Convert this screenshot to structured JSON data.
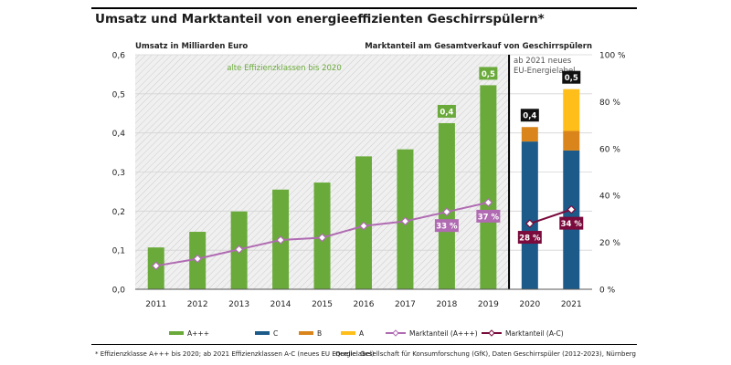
{
  "title": "Umsatz und Marktanteil von energieeffizienten Geschirrspülern*",
  "left_axis_title": "Umsatz in Milliarden Euro",
  "right_axis_title": "Marktanteil am Gesamtverkauf von Geschirrspülern",
  "period1_label": "alte Effizienzklassen bis 2020",
  "period2_label_line1": "ab 2021 neues",
  "period2_label_line2": "EU-Energielabel",
  "footnote": "* Effizienzklasse A+++ bis 2020; ab 2021 Effizienzklassen A-C (neues EU Energielabel)",
  "source": "Quelle: Gesellschaft für Konsumforschung (GfK), Daten Geschirrspüler (2012-2023), Nürnberg",
  "colors": {
    "a_plus": "#6aaa3a",
    "c": "#1c5a8a",
    "b": "#d9851b",
    "a": "#ffbe1a",
    "share_old": "#b06bb2",
    "share_new": "#7a0b3c",
    "hatch_bg": "#f0f0f0",
    "hatch_line": "#cccccc"
  },
  "chart_data": {
    "type": "bar",
    "title": "Umsatz und Marktanteil von energieeffizienten Geschirrspülern*",
    "categories": [
      "2011",
      "2012",
      "2013",
      "2014",
      "2015",
      "2016",
      "2017",
      "2018",
      "2019",
      "2020",
      "2021"
    ],
    "ylabel": "Umsatz in Milliarden Euro",
    "ylim": [
      0,
      0.6
    ],
    "y_ticks": [
      "0,0",
      "0,1",
      "0,2",
      "0,3",
      "0,4",
      "0,5",
      "0,6"
    ],
    "y2label": "Marktanteil am Gesamtverkauf von Geschirrspülern",
    "y2lim": [
      0,
      100
    ],
    "y2_ticks": [
      "0 %",
      "20 %",
      "40 %",
      "60 %",
      "80 %",
      "100 %"
    ],
    "series": [
      {
        "name": "A+++",
        "kind": "bar",
        "values": [
          0.107,
          0.147,
          0.199,
          0.255,
          0.273,
          0.34,
          0.358,
          0.425,
          0.522,
          null,
          null
        ]
      },
      {
        "name": "C",
        "kind": "stacked-bar",
        "values": [
          null,
          null,
          null,
          null,
          null,
          null,
          null,
          null,
          null,
          0.378,
          0.355
        ]
      },
      {
        "name": "B",
        "kind": "stacked-bar",
        "values": [
          null,
          null,
          null,
          null,
          null,
          null,
          null,
          null,
          null,
          0.037,
          0.05
        ]
      },
      {
        "name": "A",
        "kind": "stacked-bar",
        "values": [
          null,
          null,
          null,
          null,
          null,
          null,
          null,
          null,
          null,
          0.0,
          0.107
        ]
      },
      {
        "name": "Marktanteil (A+++)",
        "kind": "line",
        "axis": "right",
        "values": [
          10,
          13,
          17,
          21,
          22,
          27,
          29,
          33,
          37,
          null,
          null
        ]
      },
      {
        "name": "Marktanteil (A-C)",
        "kind": "line",
        "axis": "right",
        "values": [
          null,
          null,
          null,
          null,
          null,
          null,
          null,
          null,
          null,
          28,
          34
        ]
      }
    ],
    "bar_total_labels": [
      {
        "category": "2018",
        "label": "0,4"
      },
      {
        "category": "2019",
        "label": "0,5"
      },
      {
        "category": "2020",
        "label": "0,4"
      },
      {
        "category": "2021",
        "label": "0,5"
      }
    ],
    "share_labels": [
      {
        "category": "2018",
        "label": "33 %"
      },
      {
        "category": "2019",
        "label": "37 %"
      },
      {
        "category": "2020",
        "label": "28 %"
      },
      {
        "category": "2021",
        "label": "34 %"
      }
    ],
    "legend": [
      "A+++",
      "C",
      "B",
      "A",
      "Marktanteil (A+++)",
      "Marktanteil (A-C)"
    ],
    "legend_position": "bottom"
  }
}
